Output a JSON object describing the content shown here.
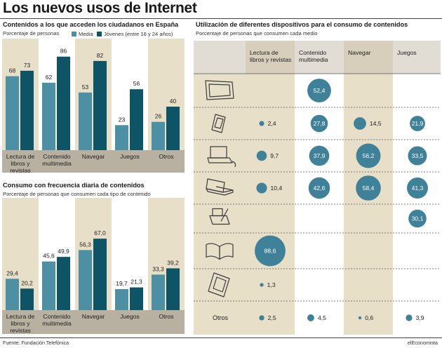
{
  "title": "Los nuevos usos de Internet",
  "colors": {
    "media": "#4d8fa3",
    "jovenes": "#0d5566",
    "panel_bg": "#e8dfc8",
    "category_band": "#b8b0a0",
    "bubble": "#3f8199"
  },
  "left_top": {
    "title": "Contenidos a los que acceden los ciudadanos en España",
    "subtitle": "Porcentaje de personas"
  },
  "left_bottom": {
    "title": "Consumo con frecuencia diaria de contenidos",
    "subtitle": "Porcentaje de personas que consumen cada tipo de contenido"
  },
  "right": {
    "title": "Utilización de diferentes dispositivos para el consumo de contenidos",
    "subtitle": "Porcentaje de personas que consumen cada medio"
  },
  "footer": {
    "source": "Fuente: Fundación Telefónica",
    "brand": "elEconomista"
  },
  "chart_data": [
    {
      "type": "bar",
      "title": "Contenidos a los que acceden los ciudadanos en España",
      "subtitle": "Porcentaje de personas",
      "categories": [
        "Lectura de libros y revistas",
        "Contenido multimedia",
        "Navegar",
        "Juegos",
        "Otros"
      ],
      "category_lines": [
        [
          "Lectura de",
          "libros y",
          "revistas"
        ],
        [
          "Contenido",
          "multimedia"
        ],
        [
          "Navegar"
        ],
        [
          "Juegos"
        ],
        [
          "Otros"
        ]
      ],
      "series": [
        {
          "name": "Media",
          "values": [
            68,
            62,
            53,
            23,
            26
          ]
        },
        {
          "name": "Jóvenes (entre 16 y 24 años)",
          "values": [
            73,
            86,
            82,
            56,
            40
          ]
        }
      ],
      "ylim": [
        0,
        100
      ],
      "grid": false,
      "legend": "top"
    },
    {
      "type": "bar",
      "title": "Consumo con frecuencia diaria de contenidos",
      "subtitle": "Porcentaje de personas que consumen cada tipo de contenido",
      "categories": [
        "Lectura de libros y revistas",
        "Contenido multimedia",
        "Navegar",
        "Juegos",
        "Otros"
      ],
      "category_lines": [
        [
          "Lectura de",
          "libros y",
          "revistas"
        ],
        [
          "Contenido",
          "multimedia"
        ],
        [
          "Navegar"
        ],
        [
          "Juegos"
        ],
        [
          "Otros"
        ]
      ],
      "series": [
        {
          "name": "Media",
          "values": [
            29.4,
            45.6,
            56.3,
            19.7,
            33.3
          ]
        },
        {
          "name": "Jóvenes (entre 16 y 24 años)",
          "values": [
            20.2,
            49.9,
            67.0,
            21.3,
            39.2
          ]
        }
      ],
      "value_labels": [
        [
          "29,4",
          "45,6",
          "56,3",
          "19,7",
          "33,3"
        ],
        [
          "20,2",
          "49,9",
          "67,0",
          "21,3",
          "39,2"
        ]
      ],
      "ylim": [
        0,
        100
      ],
      "grid": false
    },
    {
      "type": "bubble",
      "title": "Utilización de diferentes dispositivos para el consumo de contenidos",
      "subtitle": "Porcentaje de personas que consumen cada medio",
      "columns": [
        "Lectura de libros y revistas",
        "Contenido multimedia",
        "Navegar",
        "Juegos"
      ],
      "column_lines": [
        [
          "Lectura de",
          "libros y revistas"
        ],
        [
          "Contenido",
          "multimedia"
        ],
        [
          "Navegar"
        ],
        [
          "Juegos"
        ]
      ],
      "rows": [
        "tv-icon",
        "smartphone-icon",
        "laptop-icon",
        "netbook-icon",
        "tablet-pen-icon",
        "book-icon",
        "ereader-icon",
        "Otros"
      ],
      "values": [
        [
          null,
          52.4,
          null,
          null
        ],
        [
          2.4,
          27.8,
          14.5,
          21.9
        ],
        [
          9.7,
          37.9,
          56.2,
          33.5
        ],
        [
          10.4,
          42.6,
          58.4,
          41.3
        ],
        [
          null,
          null,
          null,
          30.1
        ],
        [
          88.6,
          null,
          null,
          null
        ],
        [
          1.3,
          null,
          null,
          null
        ],
        [
          2.5,
          4.5,
          0.6,
          3.9
        ]
      ],
      "labels": [
        [
          null,
          "52,4",
          null,
          null
        ],
        [
          "2,4",
          "27,8",
          "14,5",
          "21,9"
        ],
        [
          "9,7",
          "37,9",
          "56,2",
          "33,5"
        ],
        [
          "10,4",
          "42,6",
          "58,4",
          "41,3"
        ],
        [
          null,
          null,
          null,
          "30,1"
        ],
        [
          "88,6",
          null,
          null,
          null
        ],
        [
          "1,3",
          null,
          null,
          null
        ],
        [
          "2,5",
          "4,5",
          "0,6",
          "3,9"
        ]
      ]
    }
  ]
}
